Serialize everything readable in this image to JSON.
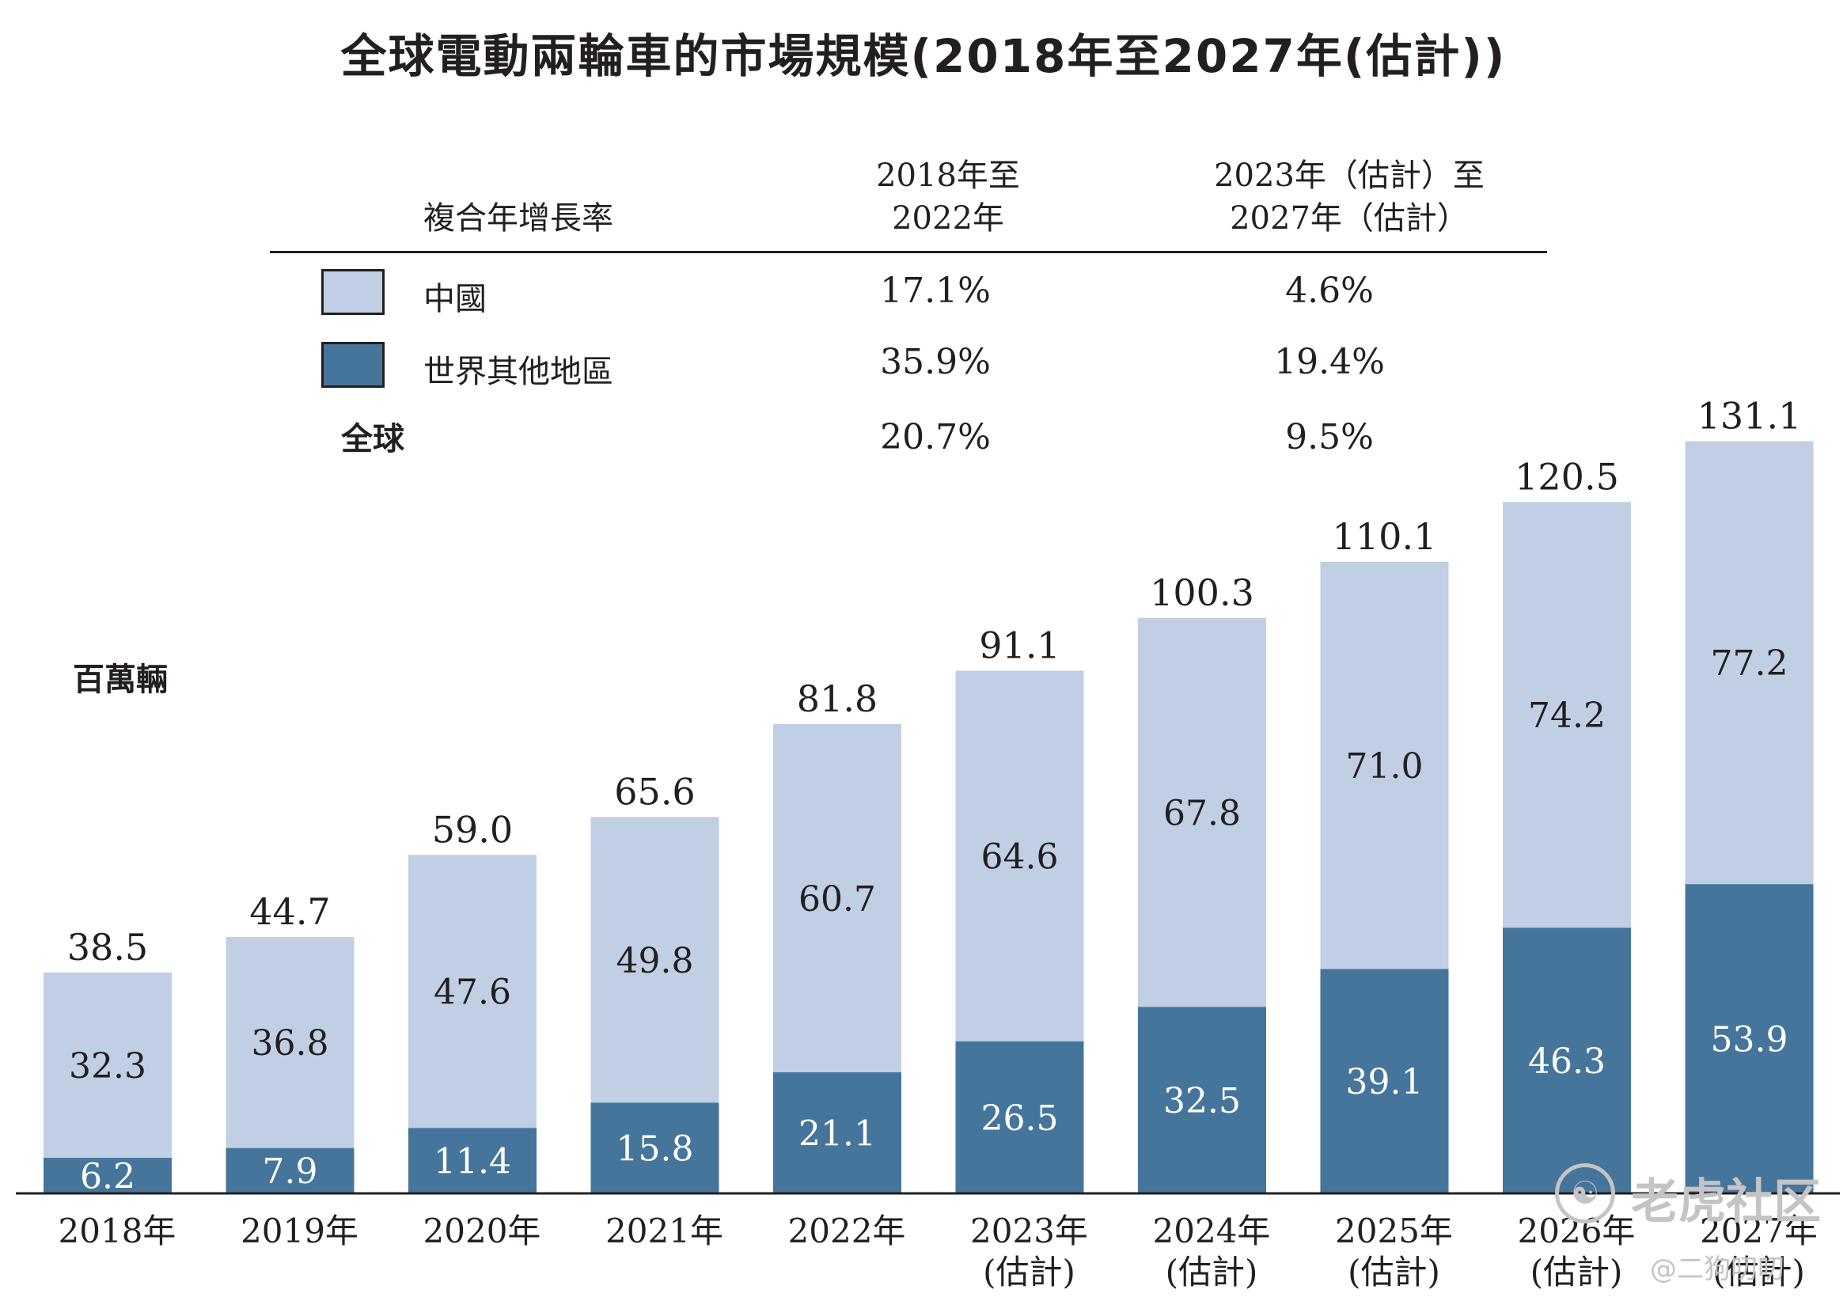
{
  "title": "全球電動兩輪車的市場規模(2018年至2027年(估計))",
  "cagr_table": {
    "heading": "複合年增長率",
    "columns": [
      [
        "2018年至",
        "2022年"
      ],
      [
        "2023年（估計）至",
        "2027年（估計）"
      ]
    ],
    "rows": [
      {
        "label": "中國",
        "values": [
          "17.1%",
          "4.6%"
        ],
        "swatch": "#c0cfe4"
      },
      {
        "label": "世界其他地區",
        "values": [
          "35.9%",
          "19.4%"
        ],
        "swatch": "#46759b"
      },
      {
        "label": "全球",
        "values": [
          "20.7%",
          "9.5%"
        ],
        "swatch": null
      }
    ]
  },
  "unit_label": "百萬輛",
  "colors": {
    "china": "#c0cfe4",
    "rest_of_world": "#46759b",
    "bar_text_light": "#ffffff",
    "bar_text_dark": "#231f20",
    "axis": "#231f20"
  },
  "chart_data": {
    "type": "bar",
    "stacked": true,
    "categories": [
      [
        "2018年"
      ],
      [
        "2019年"
      ],
      [
        "2020年"
      ],
      [
        "2021年"
      ],
      [
        "2022年"
      ],
      [
        "2023年",
        "(估計)"
      ],
      [
        "2024年",
        "(估計)"
      ],
      [
        "2025年",
        "(估計)"
      ],
      [
        "2026年",
        "(估計)"
      ],
      [
        "2027年",
        "(估計)"
      ]
    ],
    "series": [
      {
        "name": "世界其他地區",
        "values": [
          6.2,
          7.9,
          11.4,
          15.8,
          21.1,
          26.5,
          32.5,
          39.1,
          46.3,
          53.9
        ]
      },
      {
        "name": "中國",
        "values": [
          32.3,
          36.8,
          47.6,
          49.8,
          60.7,
          64.6,
          67.8,
          71.0,
          74.2,
          77.2
        ]
      }
    ],
    "totals": [
      38.5,
      44.7,
      59.0,
      65.6,
      81.8,
      91.1,
      100.3,
      110.1,
      120.5,
      131.1
    ],
    "ylabel": "百萬輛",
    "ylim": [
      0,
      131.1
    ],
    "grid": false,
    "legend": "top-left table"
  },
  "watermark": {
    "icon": "tiger-community-logo",
    "name": "老虎社区",
    "handle": "@二狗叨叨"
  }
}
